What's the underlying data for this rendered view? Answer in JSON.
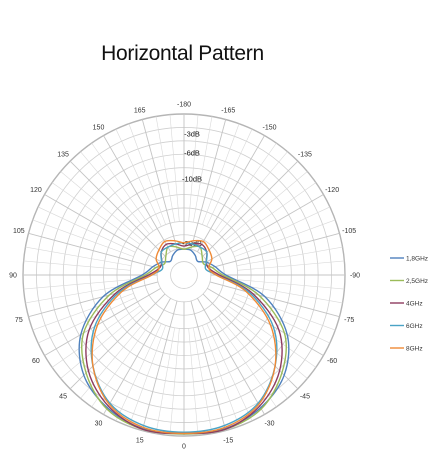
{
  "chart_data": {
    "type": "polar-line",
    "title": "Horizontal Pattern",
    "angle_ticks": [
      "-180",
      "-165",
      "-150",
      "-135",
      "-120",
      "-105",
      "-90",
      "-75",
      "-60",
      "-45",
      "-30",
      "-15",
      "0",
      "15",
      "30",
      "45",
      "60",
      "75",
      "90",
      "105",
      "120",
      "135",
      "150",
      "165"
    ],
    "radial_ticks": [
      "-3dB",
      "-6dB",
      "-10dB",
      "-20dB"
    ],
    "radial_range_db": [
      -25,
      0
    ],
    "legend_position": "right",
    "series": [
      {
        "name": "1,8GHz",
        "color": "#4f81bd",
        "points": [
          [
            0,
            -0.5
          ],
          [
            15,
            -0.3
          ],
          [
            30,
            -1.2
          ],
          [
            45,
            -3
          ],
          [
            60,
            -6.5
          ],
          [
            75,
            -12
          ],
          [
            90,
            -18.5
          ],
          [
            105,
            -20
          ],
          [
            120,
            -21
          ],
          [
            135,
            -22
          ],
          [
            150,
            -21.5
          ],
          [
            165,
            -21
          ],
          [
            180,
            -21
          ],
          [
            -165,
            -21
          ],
          [
            -150,
            -21.5
          ],
          [
            -135,
            -22
          ],
          [
            -120,
            -21
          ],
          [
            -105,
            -20
          ],
          [
            -90,
            -18.5
          ],
          [
            -75,
            -12
          ],
          [
            -60,
            -6.5
          ],
          [
            -45,
            -3
          ],
          [
            -30,
            -1.2
          ],
          [
            -15,
            -0.3
          ]
        ]
      },
      {
        "name": "2,5GHz",
        "color": "#9bbb59",
        "points": [
          [
            0,
            -0.3
          ],
          [
            15,
            -0.2
          ],
          [
            30,
            -1
          ],
          [
            45,
            -3.5
          ],
          [
            60,
            -7
          ],
          [
            75,
            -13
          ],
          [
            90,
            -19
          ],
          [
            105,
            -20.5
          ],
          [
            120,
            -21.5
          ],
          [
            135,
            -21
          ],
          [
            150,
            -20
          ],
          [
            165,
            -20.5
          ],
          [
            180,
            -21
          ],
          [
            -165,
            -20.5
          ],
          [
            -150,
            -20
          ],
          [
            -135,
            -21
          ],
          [
            -120,
            -21.5
          ],
          [
            -105,
            -20.5
          ],
          [
            -90,
            -19
          ],
          [
            -75,
            -13
          ],
          [
            -60,
            -7
          ],
          [
            -45,
            -3.5
          ],
          [
            -30,
            -1
          ],
          [
            -15,
            -0.2
          ]
        ]
      },
      {
        "name": "4GHz",
        "color": "#8e3b5f",
        "points": [
          [
            0,
            -0.4
          ],
          [
            15,
            -0.2
          ],
          [
            30,
            -1.5
          ],
          [
            45,
            -4
          ],
          [
            60,
            -8
          ],
          [
            75,
            -14
          ],
          [
            90,
            -19.5
          ],
          [
            105,
            -21
          ],
          [
            120,
            -21
          ],
          [
            135,
            -20
          ],
          [
            150,
            -19.5
          ],
          [
            165,
            -20
          ],
          [
            180,
            -20.5
          ],
          [
            -165,
            -20
          ],
          [
            -150,
            -19.5
          ],
          [
            -135,
            -20
          ],
          [
            -120,
            -21
          ],
          [
            -105,
            -21
          ],
          [
            -90,
            -19.5
          ],
          [
            -75,
            -14
          ],
          [
            -60,
            -8
          ],
          [
            -45,
            -4
          ],
          [
            -30,
            -1.5
          ],
          [
            -15,
            -0.2
          ]
        ]
      },
      {
        "name": "6GHz",
        "color": "#4aa3c5",
        "points": [
          [
            0,
            -0.6
          ],
          [
            15,
            -0.8
          ],
          [
            30,
            -2
          ],
          [
            45,
            -5
          ],
          [
            60,
            -9
          ],
          [
            75,
            -14.5
          ],
          [
            90,
            -20
          ],
          [
            105,
            -21.5
          ],
          [
            120,
            -21
          ],
          [
            135,
            -20
          ],
          [
            150,
            -20
          ],
          [
            165,
            -20
          ],
          [
            180,
            -20
          ],
          [
            -165,
            -20
          ],
          [
            -150,
            -20
          ],
          [
            -135,
            -20
          ],
          [
            -120,
            -21
          ],
          [
            -105,
            -21.5
          ],
          [
            -90,
            -20
          ],
          [
            -75,
            -14.5
          ],
          [
            -60,
            -9
          ],
          [
            -45,
            -5
          ],
          [
            -30,
            -2
          ],
          [
            -15,
            -0.8
          ]
        ]
      },
      {
        "name": "8GHz",
        "color": "#f08a36",
        "points": [
          [
            0,
            -0.4
          ],
          [
            15,
            -0.5
          ],
          [
            30,
            -1.8
          ],
          [
            45,
            -5
          ],
          [
            60,
            -9.5
          ],
          [
            75,
            -15
          ],
          [
            90,
            -20
          ],
          [
            105,
            -21
          ],
          [
            120,
            -20
          ],
          [
            135,
            -19.5
          ],
          [
            150,
            -19
          ],
          [
            165,
            -19.5
          ],
          [
            180,
            -20
          ],
          [
            -165,
            -19.5
          ],
          [
            -150,
            -19
          ],
          [
            -135,
            -19.5
          ],
          [
            -120,
            -20
          ],
          [
            -105,
            -21
          ],
          [
            -90,
            -20
          ],
          [
            -75,
            -15
          ],
          [
            -60,
            -9.5
          ],
          [
            -45,
            -5
          ],
          [
            -30,
            -1.8
          ],
          [
            -15,
            -0.5
          ]
        ]
      }
    ]
  }
}
